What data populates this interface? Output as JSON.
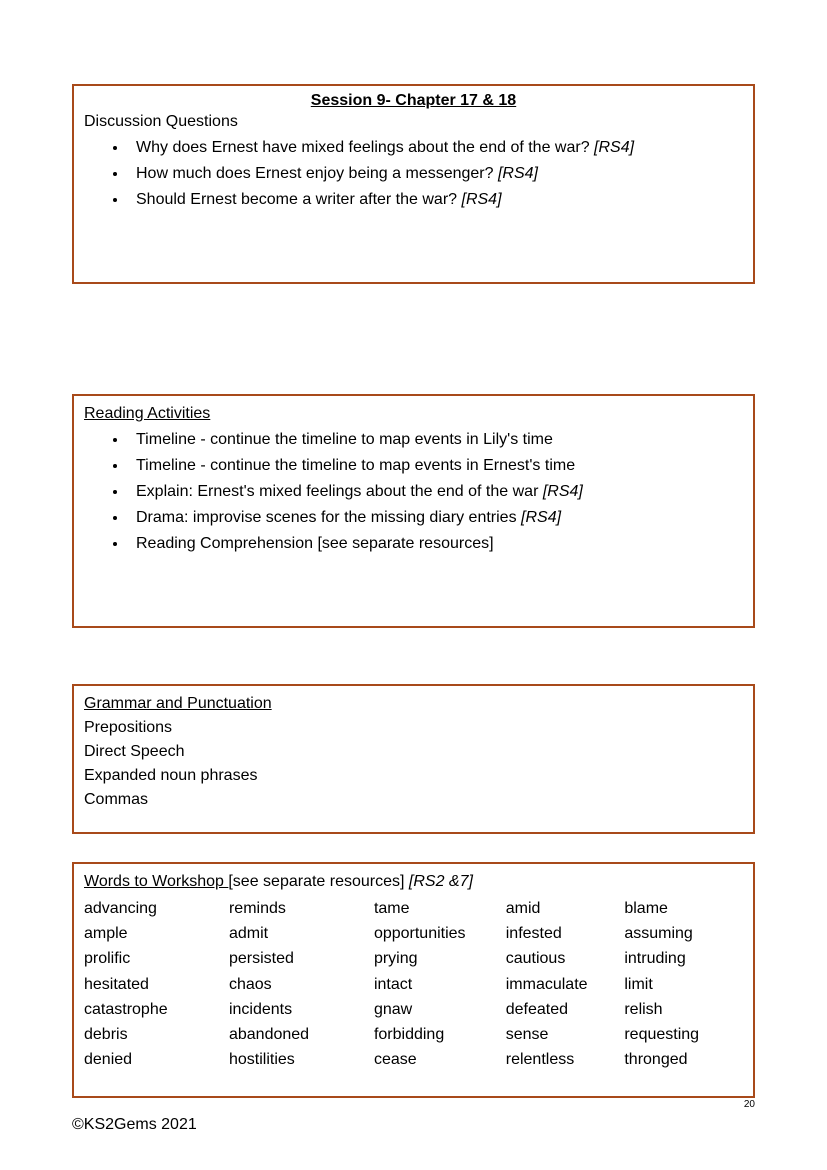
{
  "colors": {
    "border": "#a84a1a",
    "text": "#000000",
    "background": "#ffffff"
  },
  "typography": {
    "family": "Comic Sans MS",
    "base_size_pt": 12
  },
  "box1": {
    "title": "Session 9- Chapter 17 & 18",
    "heading": "Discussion Questions",
    "items": [
      {
        "text": "Why does Ernest have mixed feelings about the end of the war? ",
        "tag": "[RS4]"
      },
      {
        "text": "How much does Ernest enjoy being a messenger? ",
        "tag": "[RS4]"
      },
      {
        "text": "Should Ernest become a writer after the war? ",
        "tag": "[RS4]"
      }
    ]
  },
  "box2": {
    "heading": "Reading Activities",
    "items": [
      {
        "text": "Timeline - continue the timeline to map events in Lily's time",
        "tag": ""
      },
      {
        "text": "Timeline - continue the timeline to map events in Ernest's time",
        "tag": ""
      },
      {
        "text": "Explain: Ernest's mixed feelings about the end of the war ",
        "tag": "[RS4]"
      },
      {
        "text": "Drama: improvise scenes for the missing diary entries ",
        "tag": "[RS4]"
      },
      {
        "text": "Reading Comprehension [see separate resources]",
        "tag": ""
      }
    ]
  },
  "box3": {
    "heading": "Grammar and Punctuation",
    "lines": [
      "Prepositions",
      "Direct Speech",
      "Expanded noun phrases",
      "Commas"
    ]
  },
  "box4": {
    "heading": "Words to Workshop ",
    "heading_suffix": "[see separate resources]  ",
    "heading_tag": "[RS2 &7]",
    "columns_pct": [
      22,
      22,
      20,
      18,
      18
    ],
    "rows": [
      [
        "advancing",
        "reminds",
        "tame",
        "amid",
        "blame"
      ],
      [
        "ample",
        "admit",
        "opportunities",
        "infested",
        "assuming"
      ],
      [
        "prolific",
        "persisted",
        "prying",
        "cautious",
        "intruding"
      ],
      [
        "hesitated",
        "chaos",
        "intact",
        "immaculate",
        "limit"
      ],
      [
        "catastrophe",
        "incidents",
        "gnaw",
        "defeated",
        "relish"
      ],
      [
        "debris",
        "abandoned",
        "forbidding",
        "sense",
        "requesting"
      ],
      [
        "denied",
        "hostilities",
        "cease",
        "relentless",
        "thronged"
      ]
    ]
  },
  "footer": "©KS2Gems 2021",
  "page_number": "20"
}
